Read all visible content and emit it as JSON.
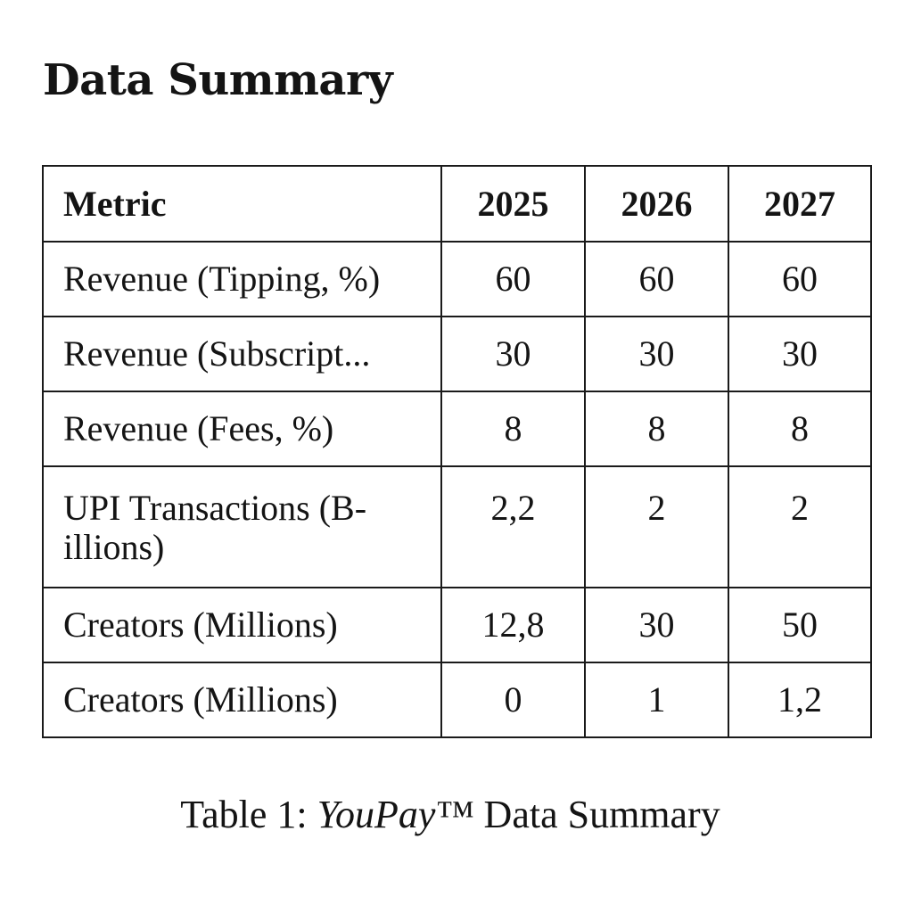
{
  "heading": "Data Summary",
  "table": {
    "headers": [
      "Metric",
      "2025",
      "2026",
      "2027"
    ],
    "rows": [
      {
        "metric": "Revenue (Tipping, %)",
        "v2025": "60",
        "v2026": "60",
        "v2027": "60"
      },
      {
        "metric": "Revenue (Subscript...",
        "v2025": "30",
        "v2026": "30",
        "v2027": "30"
      },
      {
        "metric": "Revenue (Fees, %)",
        "v2025": "8",
        "v2026": "8",
        "v2027": "8"
      },
      {
        "metric": "UPI Transactions (B-illions)",
        "v2025": "2,2",
        "v2026": "2",
        "v2027": "2"
      },
      {
        "metric": "Creators (Millions)",
        "v2025": "12,8",
        "v2026": "30",
        "v2027": "50"
      },
      {
        "metric": "Creators (Millions)",
        "v2025": "0",
        "v2026": "1",
        "v2027": "1,2"
      }
    ]
  },
  "caption": {
    "prefix": "Table 1: ",
    "brand": "YouPay™",
    "suffix": " Data Summary"
  }
}
